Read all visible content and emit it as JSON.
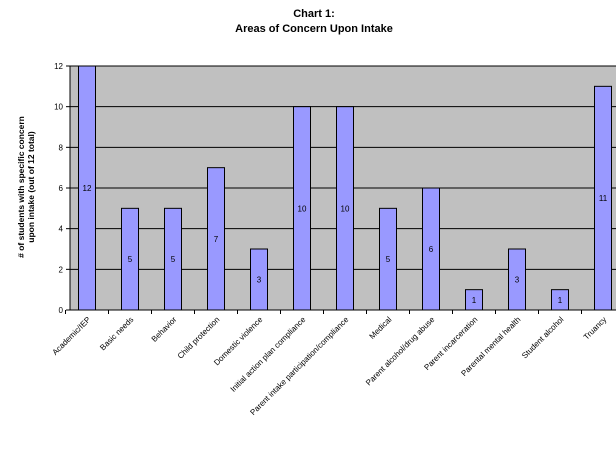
{
  "chart_data": {
    "type": "bar",
    "title": "Chart 1:",
    "subtitle": "Areas of Concern Upon Intake",
    "ylabel": "# of students with specific concern upon intake (out of 12 total)",
    "ylabel_lines": [
      "# of students with specific concern",
      "upon intake (out of 12 total)"
    ],
    "xlabel": "",
    "ylim": [
      0,
      12
    ],
    "yticks": [
      0,
      2,
      4,
      6,
      8,
      10,
      12
    ],
    "grid": true,
    "legend": "none",
    "categories": [
      "Academic/IEP",
      "Basic needs",
      "Behavior",
      "Child protection",
      "Domestic violence",
      "Initial action plan compliance",
      "Parent intake participation/compliance",
      "Medical",
      "Parent alcohol/drug abuse",
      "Parent incarceration",
      "Parental mental health",
      "Student alcohol",
      "Truancy"
    ],
    "values": [
      12,
      5,
      5,
      7,
      3,
      10,
      10,
      5,
      6,
      1,
      3,
      1,
      11
    ],
    "colors": {
      "bar_fill": "#9999ff",
      "bar_stroke": "#000000",
      "plot_background": "#c0c0c0",
      "gridline": "#000000"
    }
  }
}
